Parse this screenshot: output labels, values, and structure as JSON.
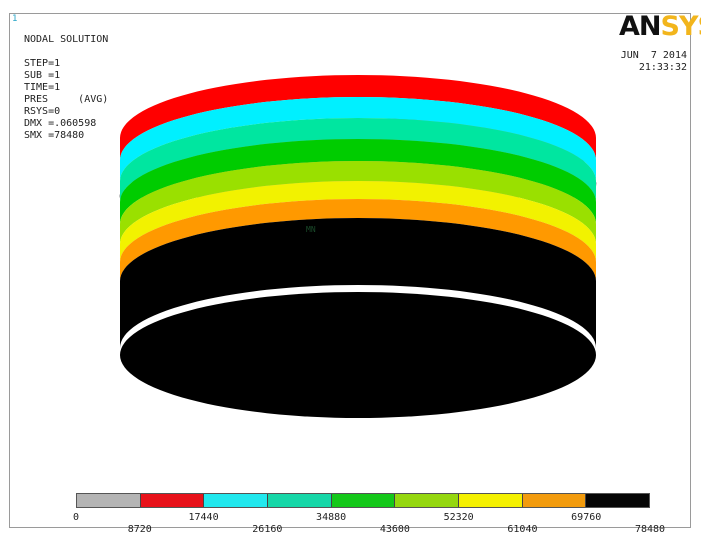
{
  "window": {
    "number": "1",
    "logo_main": "AN",
    "logo_tail": "SYS",
    "date": "JUN  7 2014",
    "time": "21:33:32"
  },
  "solution_info": {
    "title": "NODAL SOLUTION",
    "step": "STEP=1",
    "sub": "SUB =1",
    "time": "TIME=1",
    "pres": "PRES     (AVG)",
    "rsys": "RSYS=0",
    "dmx": "DMX =.060598",
    "smx": "SMX =78480"
  },
  "model": {
    "min_marker": "MN",
    "band_colors": [
      "#ff0000",
      "#00f0ff",
      "#00e6a0",
      "#00cc00",
      "#9ae000",
      "#f2f200",
      "#ff9900",
      "#000000"
    ],
    "top_color": "#a8a8a8"
  },
  "legend": {
    "colors": [
      "#b4b4b4",
      "#e8121a",
      "#22e8ee",
      "#16d7a8",
      "#14c81a",
      "#95d70f",
      "#f4f000",
      "#f29b0d",
      "#050505"
    ],
    "labels": [
      "0",
      "8720",
      "17440",
      "26160",
      "34880",
      "43600",
      "52320",
      "61040",
      "69760",
      "78480"
    ]
  }
}
